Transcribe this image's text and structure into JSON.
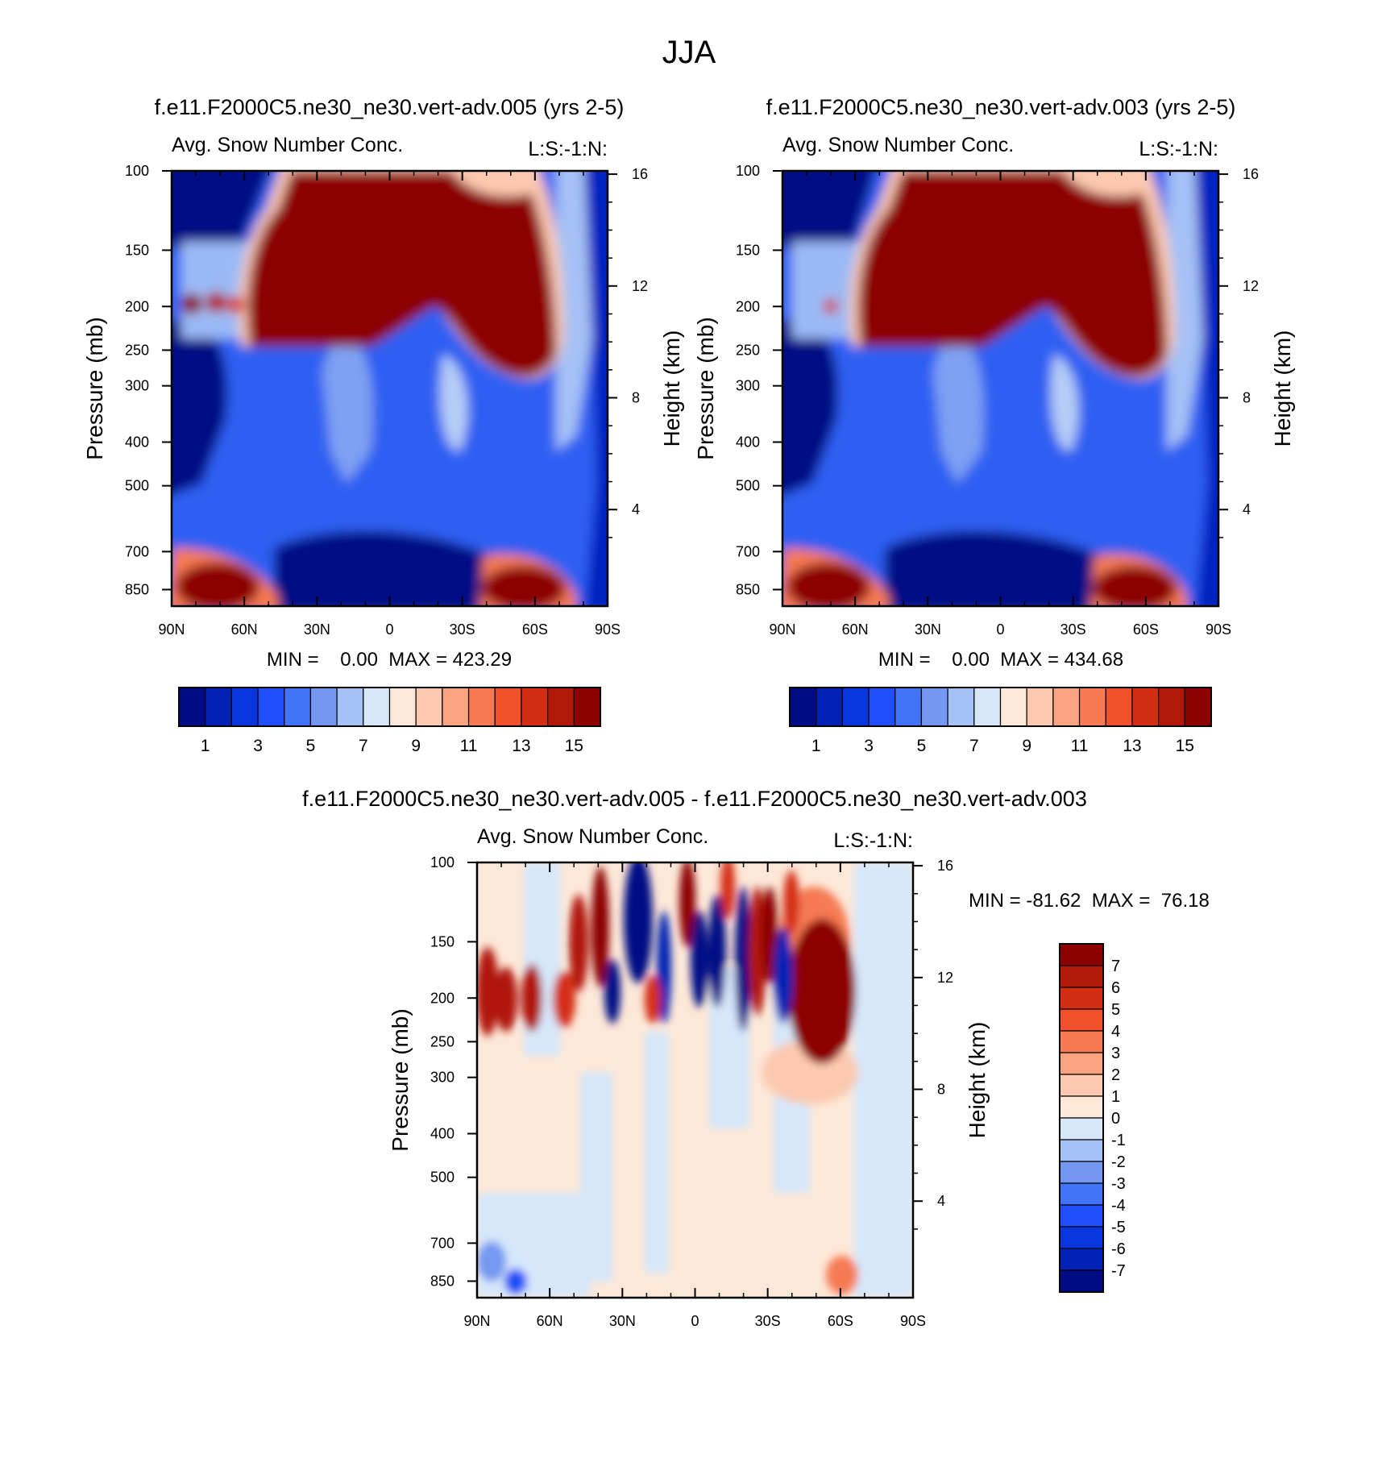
{
  "figure": {
    "title": "JJA"
  },
  "panels": [
    {
      "case": "f.e11.F2000C5.ne30_ne30.vert-adv.005 (yrs 2-5)",
      "variable": "Avg. Snow Number Conc.",
      "corner": "L:S:-1:N:",
      "stats": "MIN =    0.00  MAX = 423.29"
    },
    {
      "case": "f.e11.F2000C5.ne30_ne30.vert-adv.003 (yrs 2-5)",
      "variable": "Avg. Snow Number Conc.",
      "corner": "L:S:-1:N:",
      "stats": "MIN =    0.00  MAX = 434.68"
    },
    {
      "case": "f.e11.F2000C5.ne30_ne30.vert-adv.005 - f.e11.F2000C5.ne30_ne30.vert-adv.003",
      "variable": "Avg. Snow Number Conc.",
      "corner": "L:S:-1:N:",
      "stats": "MIN = -81.62  MAX =  76.18"
    }
  ],
  "chart_data": [
    {
      "type": "heatmap",
      "title": "f.e11.F2000C5.ne30_ne30.vert-adv.005 (yrs 2-5)",
      "subtitle": "Avg. Snow Number Conc.",
      "xlabel": "",
      "ylabel": "Pressure (mb)",
      "y2label": "Height (km)",
      "xticks": [
        "90N",
        "60N",
        "30N",
        "0",
        "30S",
        "60S",
        "90S"
      ],
      "yticks": [
        "100",
        "150",
        "200",
        "250",
        "300",
        "400",
        "500",
        "700",
        "850"
      ],
      "y2ticks": [
        "16",
        "12",
        "8",
        "4"
      ],
      "colorbar_labels": [
        "1",
        "3",
        "5",
        "7",
        "9",
        "11",
        "13",
        "15"
      ],
      "min": 0.0,
      "max": 423.29
    },
    {
      "type": "heatmap",
      "title": "f.e11.F2000C5.ne30_ne30.vert-adv.003 (yrs 2-5)",
      "subtitle": "Avg. Snow Number Conc.",
      "xlabel": "",
      "ylabel": "Pressure (mb)",
      "y2label": "Height (km)",
      "xticks": [
        "90N",
        "60N",
        "30N",
        "0",
        "30S",
        "60S",
        "90S"
      ],
      "yticks": [
        "100",
        "150",
        "200",
        "250",
        "300",
        "400",
        "500",
        "700",
        "850"
      ],
      "y2ticks": [
        "16",
        "12",
        "8",
        "4"
      ],
      "colorbar_labels": [
        "1",
        "3",
        "5",
        "7",
        "9",
        "11",
        "13",
        "15"
      ],
      "min": 0.0,
      "max": 434.68
    },
    {
      "type": "heatmap",
      "title": "f.e11.F2000C5.ne30_ne30.vert-adv.005 - f.e11.F2000C5.ne30_ne30.vert-adv.003",
      "subtitle": "Avg. Snow Number Conc.",
      "xlabel": "",
      "ylabel": "Pressure (mb)",
      "y2label": "Height (km)",
      "xticks": [
        "90N",
        "60N",
        "30N",
        "0",
        "30S",
        "60S",
        "90S"
      ],
      "yticks": [
        "100",
        "150",
        "200",
        "250",
        "300",
        "400",
        "500",
        "700",
        "850"
      ],
      "y2ticks": [
        "16",
        "12",
        "8",
        "4"
      ],
      "colorbar_labels": [
        "7",
        "6",
        "5",
        "4",
        "3",
        "2",
        "1",
        "0",
        "-1",
        "-2",
        "-3",
        "-4",
        "-5",
        "-6",
        "-7"
      ],
      "min": -81.62,
      "max": 76.18
    }
  ],
  "colors": {
    "seq": [
      "#000c84",
      "#0022b4",
      "#0636dc",
      "#1e4ff8",
      "#4173f6",
      "#7498f2",
      "#a6c1f6",
      "#d6e7fa",
      "#fde8d8",
      "#fcc9b0",
      "#faa380",
      "#f67a52",
      "#f0502a",
      "#d42e12",
      "#b0180a",
      "#8c0000"
    ],
    "div": [
      "#8c0000",
      "#b0180a",
      "#d42e12",
      "#f0502a",
      "#f67a52",
      "#faa380",
      "#fcc9b0",
      "#fde8d8",
      "#d6e7fa",
      "#a6c1f6",
      "#7498f2",
      "#4173f6",
      "#1e4ff8",
      "#0636dc",
      "#0022b4",
      "#000c84"
    ]
  }
}
